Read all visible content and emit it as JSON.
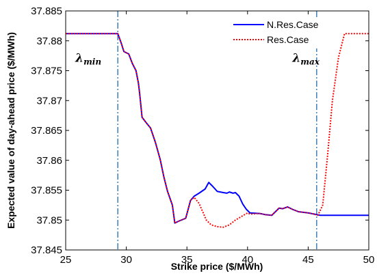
{
  "chart_data": {
    "type": "line",
    "xlabel": "Strike price ($/MWh)",
    "ylabel": "Expected value of day-ahead price ($/MWh)",
    "xlim": [
      25,
      50
    ],
    "ylim": [
      37.845,
      37.885
    ],
    "xticks": [
      "25",
      "30",
      "35",
      "40",
      "45",
      "50"
    ],
    "yticks": [
      "37.845",
      "37.85",
      "37.855",
      "37.86",
      "37.865",
      "37.87",
      "37.875",
      "37.88",
      "37.885"
    ],
    "legend_position": "top-right",
    "series": [
      {
        "name": "N.Res.Case",
        "color": "#0000ff",
        "style": "solid",
        "points": [
          [
            25,
            37.8812
          ],
          [
            29.3,
            37.8812
          ],
          [
            29.6,
            37.8795
          ],
          [
            29.8,
            37.8782
          ],
          [
            30.2,
            37.8778
          ],
          [
            30.5,
            37.8762
          ],
          [
            30.8,
            37.875
          ],
          [
            31.0,
            37.8729
          ],
          [
            31.1,
            37.8712
          ],
          [
            31.3,
            37.8672
          ],
          [
            31.6,
            37.8664
          ],
          [
            32.0,
            37.8654
          ],
          [
            32.4,
            37.863
          ],
          [
            32.8,
            37.8601
          ],
          [
            33.1,
            37.8572
          ],
          [
            33.4,
            37.8548
          ],
          [
            33.8,
            37.8525
          ],
          [
            34.0,
            37.8495
          ],
          [
            34.3,
            37.8498
          ],
          [
            34.9,
            37.8503
          ],
          [
            35.3,
            37.8533
          ],
          [
            35.6,
            37.854
          ],
          [
            36.0,
            37.8545
          ],
          [
            36.5,
            37.8552
          ],
          [
            36.8,
            37.8563
          ],
          [
            37.1,
            37.8557
          ],
          [
            37.5,
            37.8548
          ],
          [
            38.0,
            37.8546
          ],
          [
            38.3,
            37.8545
          ],
          [
            38.5,
            37.8547
          ],
          [
            38.8,
            37.8545
          ],
          [
            39.0,
            37.8546
          ],
          [
            39.3,
            37.854
          ],
          [
            39.6,
            37.8527
          ],
          [
            39.9,
            37.8518
          ],
          [
            40.2,
            37.8512
          ],
          [
            41.0,
            37.8511
          ],
          [
            41.5,
            37.8509
          ],
          [
            42.0,
            37.8508
          ],
          [
            42.3,
            37.8514
          ],
          [
            42.6,
            37.852
          ],
          [
            42.9,
            37.8519
          ],
          [
            43.3,
            37.8522
          ],
          [
            43.7,
            37.8518
          ],
          [
            44.2,
            37.8514
          ],
          [
            45.0,
            37.8512
          ],
          [
            45.5,
            37.851
          ],
          [
            46.0,
            37.8508
          ],
          [
            50,
            37.8508
          ]
        ]
      },
      {
        "name": "Res.Case",
        "color": "#ff0000",
        "style": "dotted",
        "points": [
          [
            25,
            37.8812
          ],
          [
            29.3,
            37.8812
          ],
          [
            29.6,
            37.8795
          ],
          [
            29.8,
            37.8782
          ],
          [
            30.2,
            37.8778
          ],
          [
            30.5,
            37.8762
          ],
          [
            30.8,
            37.875
          ],
          [
            31.0,
            37.8729
          ],
          [
            31.1,
            37.8712
          ],
          [
            31.3,
            37.8672
          ],
          [
            31.6,
            37.8664
          ],
          [
            32.0,
            37.8654
          ],
          [
            32.4,
            37.863
          ],
          [
            32.8,
            37.8601
          ],
          [
            33.1,
            37.8572
          ],
          [
            33.4,
            37.8548
          ],
          [
            33.8,
            37.8525
          ],
          [
            34.0,
            37.8495
          ],
          [
            34.3,
            37.8498
          ],
          [
            34.9,
            37.8503
          ],
          [
            35.3,
            37.8533
          ],
          [
            35.6,
            37.8538
          ],
          [
            36.0,
            37.8528
          ],
          [
            36.3,
            37.8514
          ],
          [
            36.6,
            37.85
          ],
          [
            37.0,
            37.8492
          ],
          [
            37.5,
            37.8489
          ],
          [
            38.0,
            37.8488
          ],
          [
            38.5,
            37.8492
          ],
          [
            39.0,
            37.85
          ],
          [
            39.5,
            37.8506
          ],
          [
            40.0,
            37.8512
          ],
          [
            40.2,
            37.851
          ],
          [
            41.0,
            37.8511
          ],
          [
            41.5,
            37.8509
          ],
          [
            42.0,
            37.8508
          ],
          [
            42.3,
            37.8514
          ],
          [
            42.6,
            37.852
          ],
          [
            42.9,
            37.8519
          ],
          [
            43.3,
            37.8522
          ],
          [
            43.7,
            37.8518
          ],
          [
            44.2,
            37.8514
          ],
          [
            45.0,
            37.8512
          ],
          [
            45.5,
            37.851
          ],
          [
            45.8,
            37.8508
          ],
          [
            46.2,
            37.8525
          ],
          [
            46.6,
            37.8608
          ],
          [
            47.0,
            37.87
          ],
          [
            47.5,
            37.8772
          ],
          [
            48.0,
            37.8812
          ],
          [
            50,
            37.8812
          ]
        ]
      }
    ],
    "vlines": [
      {
        "x": 29.3,
        "color": "#3d7fb8",
        "style": "dashdot"
      },
      {
        "x": 45.7,
        "color": "#3d7fb8",
        "style": "dashdot"
      }
    ],
    "annotations": [
      {
        "text": "λ",
        "sub": "min",
        "x": 25.8,
        "y": 37.8765
      },
      {
        "text": "λ",
        "sub": "max",
        "x": 43.7,
        "y": 37.8765
      }
    ]
  }
}
